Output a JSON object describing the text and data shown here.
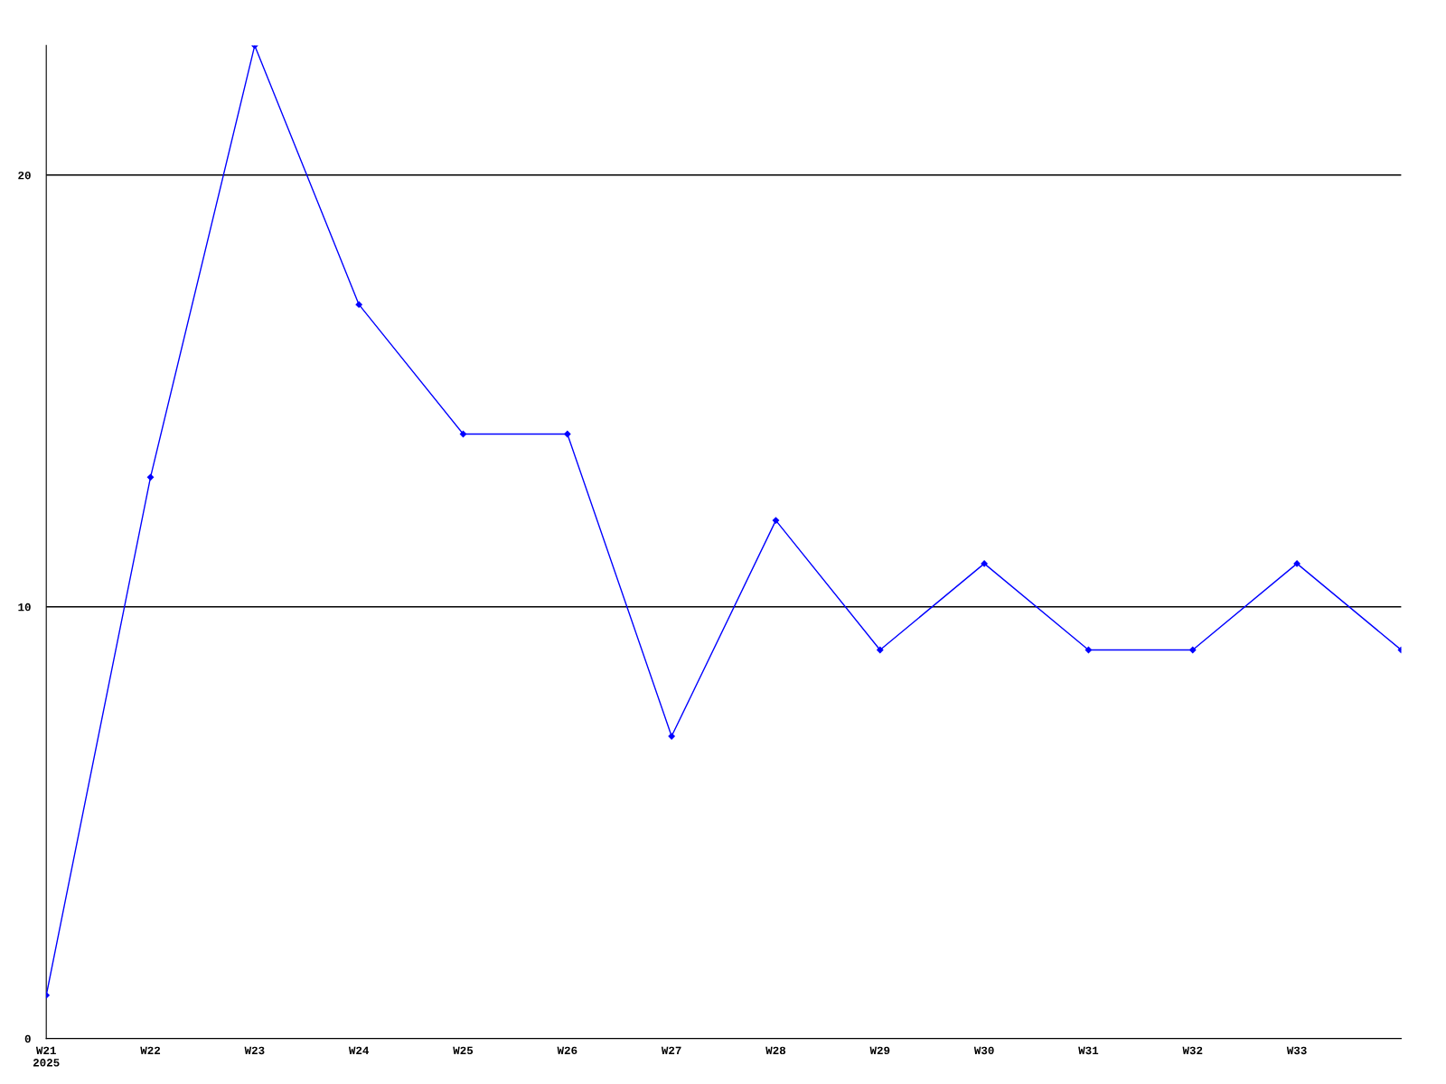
{
  "chart_data": {
    "type": "line",
    "categories": [
      "W21\n2025",
      "W22",
      "W23",
      "W24",
      "W25",
      "W26",
      "W27",
      "W28",
      "W29",
      "W30",
      "W31",
      "W32",
      "W33",
      null
    ],
    "series": [
      {
        "color": "#0000ff",
        "values": [
          1,
          13,
          23,
          17,
          14,
          14,
          7,
          12,
          9,
          11,
          9,
          9,
          11,
          9
        ]
      }
    ],
    "ylim": [
      0,
      23
    ],
    "yticks": [
      0,
      10,
      20
    ],
    "grid": "y",
    "marker": "diamond",
    "line_style": "solid"
  }
}
